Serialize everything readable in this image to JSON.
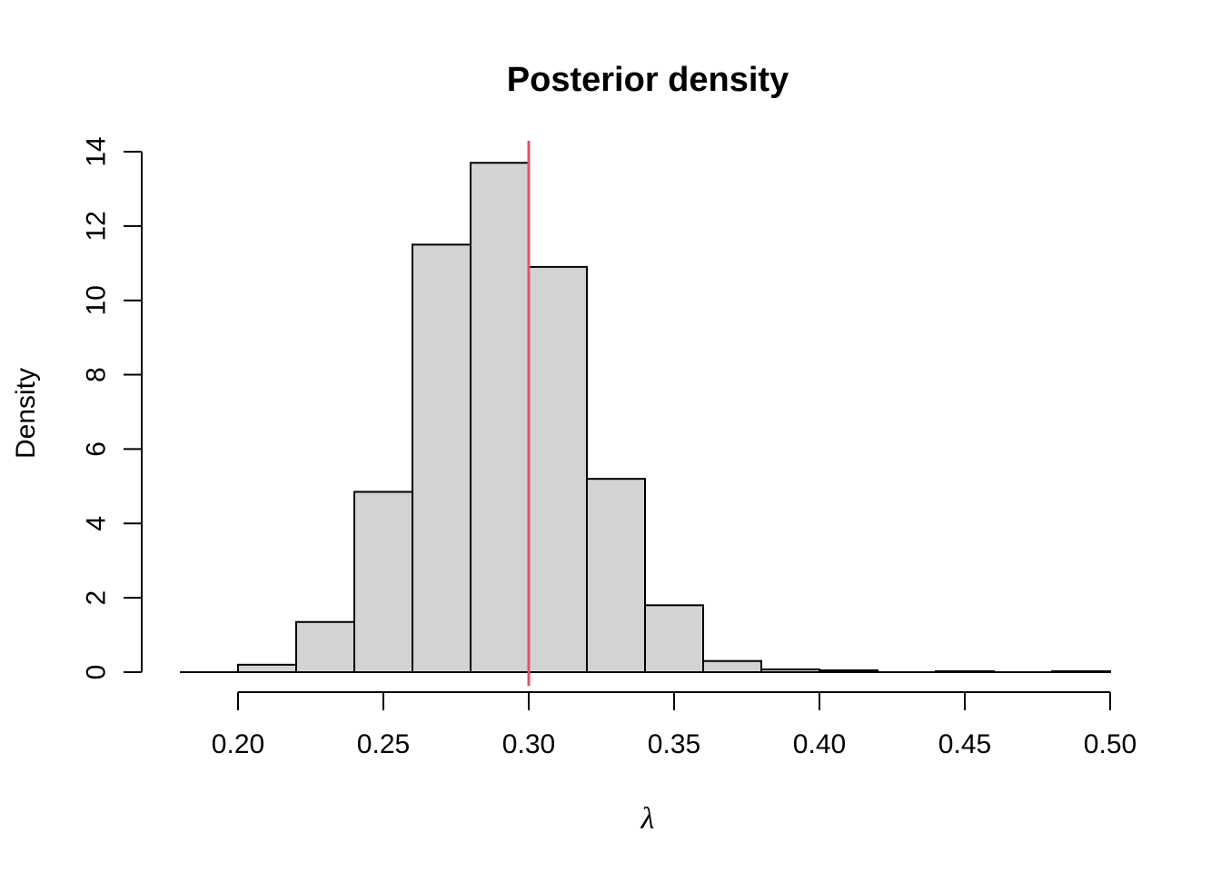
{
  "colors": {
    "background": "#FFFFFF",
    "bar_fill": "#D3D3D3",
    "bar_stroke": "#000000",
    "axis": "#000000",
    "text": "#000000",
    "vline": "#DF536B"
  },
  "chart_data": {
    "type": "bar",
    "subtype": "histogram",
    "title": "Posterior density",
    "xlabel": "λ",
    "ylabel": "Density",
    "xlim": [
      0.18,
      0.5
    ],
    "ylim": [
      0,
      14
    ],
    "grid": false,
    "legend": "none",
    "bin_width": 0.02,
    "bin_edges": [
      0.18,
      0.2,
      0.22,
      0.24,
      0.26,
      0.28,
      0.3,
      0.32,
      0.34,
      0.36,
      0.38,
      0.4,
      0.42,
      0.44,
      0.46,
      0.48,
      0.5
    ],
    "densities": [
      0,
      0.2,
      1.35,
      4.85,
      11.5,
      13.7,
      10.9,
      5.2,
      1.8,
      0.3,
      0.075,
      0.05,
      0,
      0.025,
      0,
      0.025
    ],
    "x_tick_values": [
      0.2,
      0.25,
      0.3,
      0.35,
      0.4,
      0.45,
      0.5
    ],
    "x_tick_labels": [
      "0.20",
      "0.25",
      "0.30",
      "0.35",
      "0.40",
      "0.45",
      "0.50"
    ],
    "y_tick_values": [
      0,
      2,
      4,
      6,
      8,
      10,
      12,
      14
    ],
    "y_tick_labels": [
      "0",
      "2",
      "4",
      "6",
      "8",
      "10",
      "12",
      "14"
    ],
    "vline": {
      "x": 0.3,
      "color": "#DF536B"
    }
  }
}
